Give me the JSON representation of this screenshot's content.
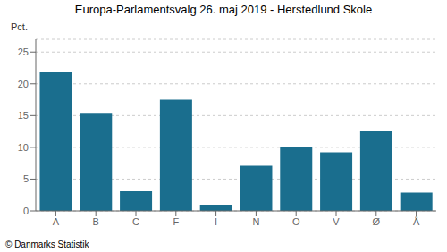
{
  "chart_data": {
    "type": "bar",
    "title": "Europa-Parlamentsvalg 26. maj 2019 - Herstedlund Skole",
    "categories": [
      "A",
      "B",
      "C",
      "F",
      "I",
      "N",
      "O",
      "V",
      "Ø",
      "Å"
    ],
    "values": [
      21.8,
      15.3,
      3.1,
      17.5,
      1.0,
      7.1,
      10.1,
      9.2,
      12.5,
      2.9
    ],
    "color": "#1a6e8e",
    "ylabel": "Pct.",
    "ylim": [
      0,
      27
    ],
    "yticks": [
      0,
      5,
      10,
      15,
      20,
      25
    ],
    "grid": true,
    "footer": "© Danmarks Statistik"
  }
}
